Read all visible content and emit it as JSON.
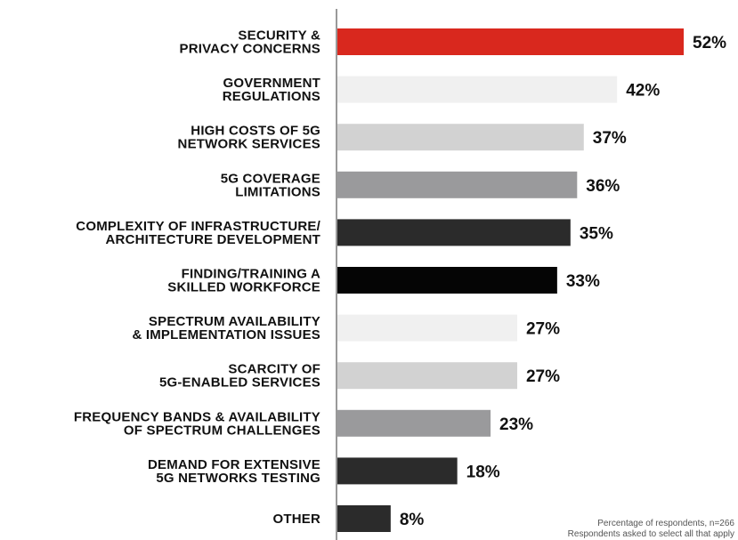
{
  "chart_data": {
    "type": "hbar",
    "categories": [
      "SECURITY &\nPRIVACY CONCERNS",
      "GOVERNMENT\nREGULATIONS",
      "HIGH COSTS OF 5G\nNETWORK SERVICES",
      "5G COVERAGE\nLIMITATIONS",
      "COMPLEXITY OF INFRASTRUCTURE/\nARCHITECTURE  DEVELOPMENT",
      "FINDING/TRAINING A\nSKILLED WORKFORCE",
      "SPECTRUM AVAILABILITY\n& IMPLEMENTATION  ISSUES",
      "SCARCITY OF\n5G-ENABLED SERVICES",
      "FREQUENCY BANDS & AVAILABILITY\nOF SPECTRUM CHALLENGES",
      "DEMAND FOR EXTENSIVE\n5G NETWORKS TESTING",
      "OTHER"
    ],
    "values": [
      52,
      42,
      37,
      36,
      35,
      33,
      27,
      27,
      23,
      18,
      8
    ],
    "value_labels": [
      "52%",
      "42%",
      "37%",
      "36%",
      "35%",
      "33%",
      "27%",
      "27%",
      "23%",
      "18%",
      "8%"
    ],
    "colors": [
      "#d9281e",
      "#f0f0f0",
      "#d2d2d2",
      "#9a9a9c",
      "#2b2b2b",
      "#050505",
      "#f0f0f0",
      "#d2d2d2",
      "#9a9a9c",
      "#2b2b2b",
      "#2b2b2b"
    ],
    "notes": [
      "Percentage of respondents, n=266",
      "Respondents asked to select all that apply"
    ]
  }
}
